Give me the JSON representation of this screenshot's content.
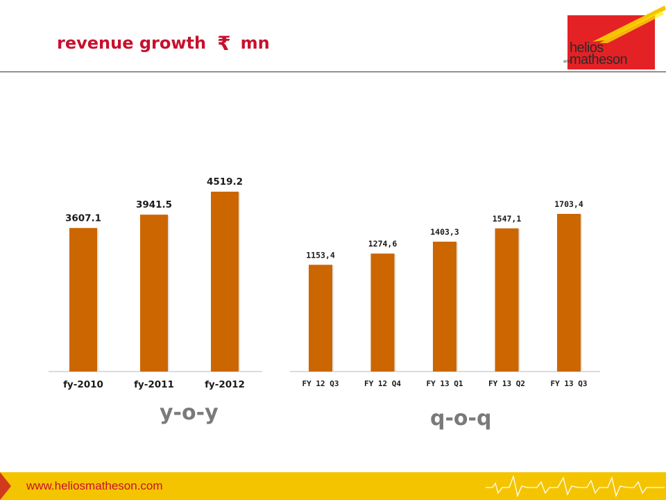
{
  "header": {
    "title_text": "revenue growth",
    "currency_symbol": "₹",
    "unit": "mn"
  },
  "logo": {
    "line1": "helios",
    "line_and": "and",
    "line2": "matheson"
  },
  "footer": {
    "url": "www.heliosmatheson.com"
  },
  "colors": {
    "bar": "#cc6600",
    "title": "#c8102e",
    "footer": "#f5c400",
    "logo_red": "#e42226"
  },
  "chart_data": [
    {
      "type": "bar",
      "caption": "y-o-y",
      "categories": [
        "fy-2010",
        "fy-2011",
        "fy-2012"
      ],
      "values": [
        3607.1,
        3941.5,
        4519.2
      ],
      "value_labels": [
        "3607.1",
        "3941.5",
        "4519.2"
      ],
      "ylim": [
        0,
        4700
      ]
    },
    {
      "type": "bar",
      "caption": "q-o-q",
      "categories": [
        "FY 12 Q3",
        "FY 12 Q4",
        "FY 13 Q1",
        "FY 13 Q2",
        "FY 13 Q3"
      ],
      "values": [
        1153.4,
        1274.6,
        1403.3,
        1547.1,
        1703.4
      ],
      "value_labels": [
        "1153,4",
        "1274,6",
        "1403,3",
        "1547,1",
        "1703,4"
      ],
      "ylim": [
        0,
        1800
      ]
    }
  ]
}
